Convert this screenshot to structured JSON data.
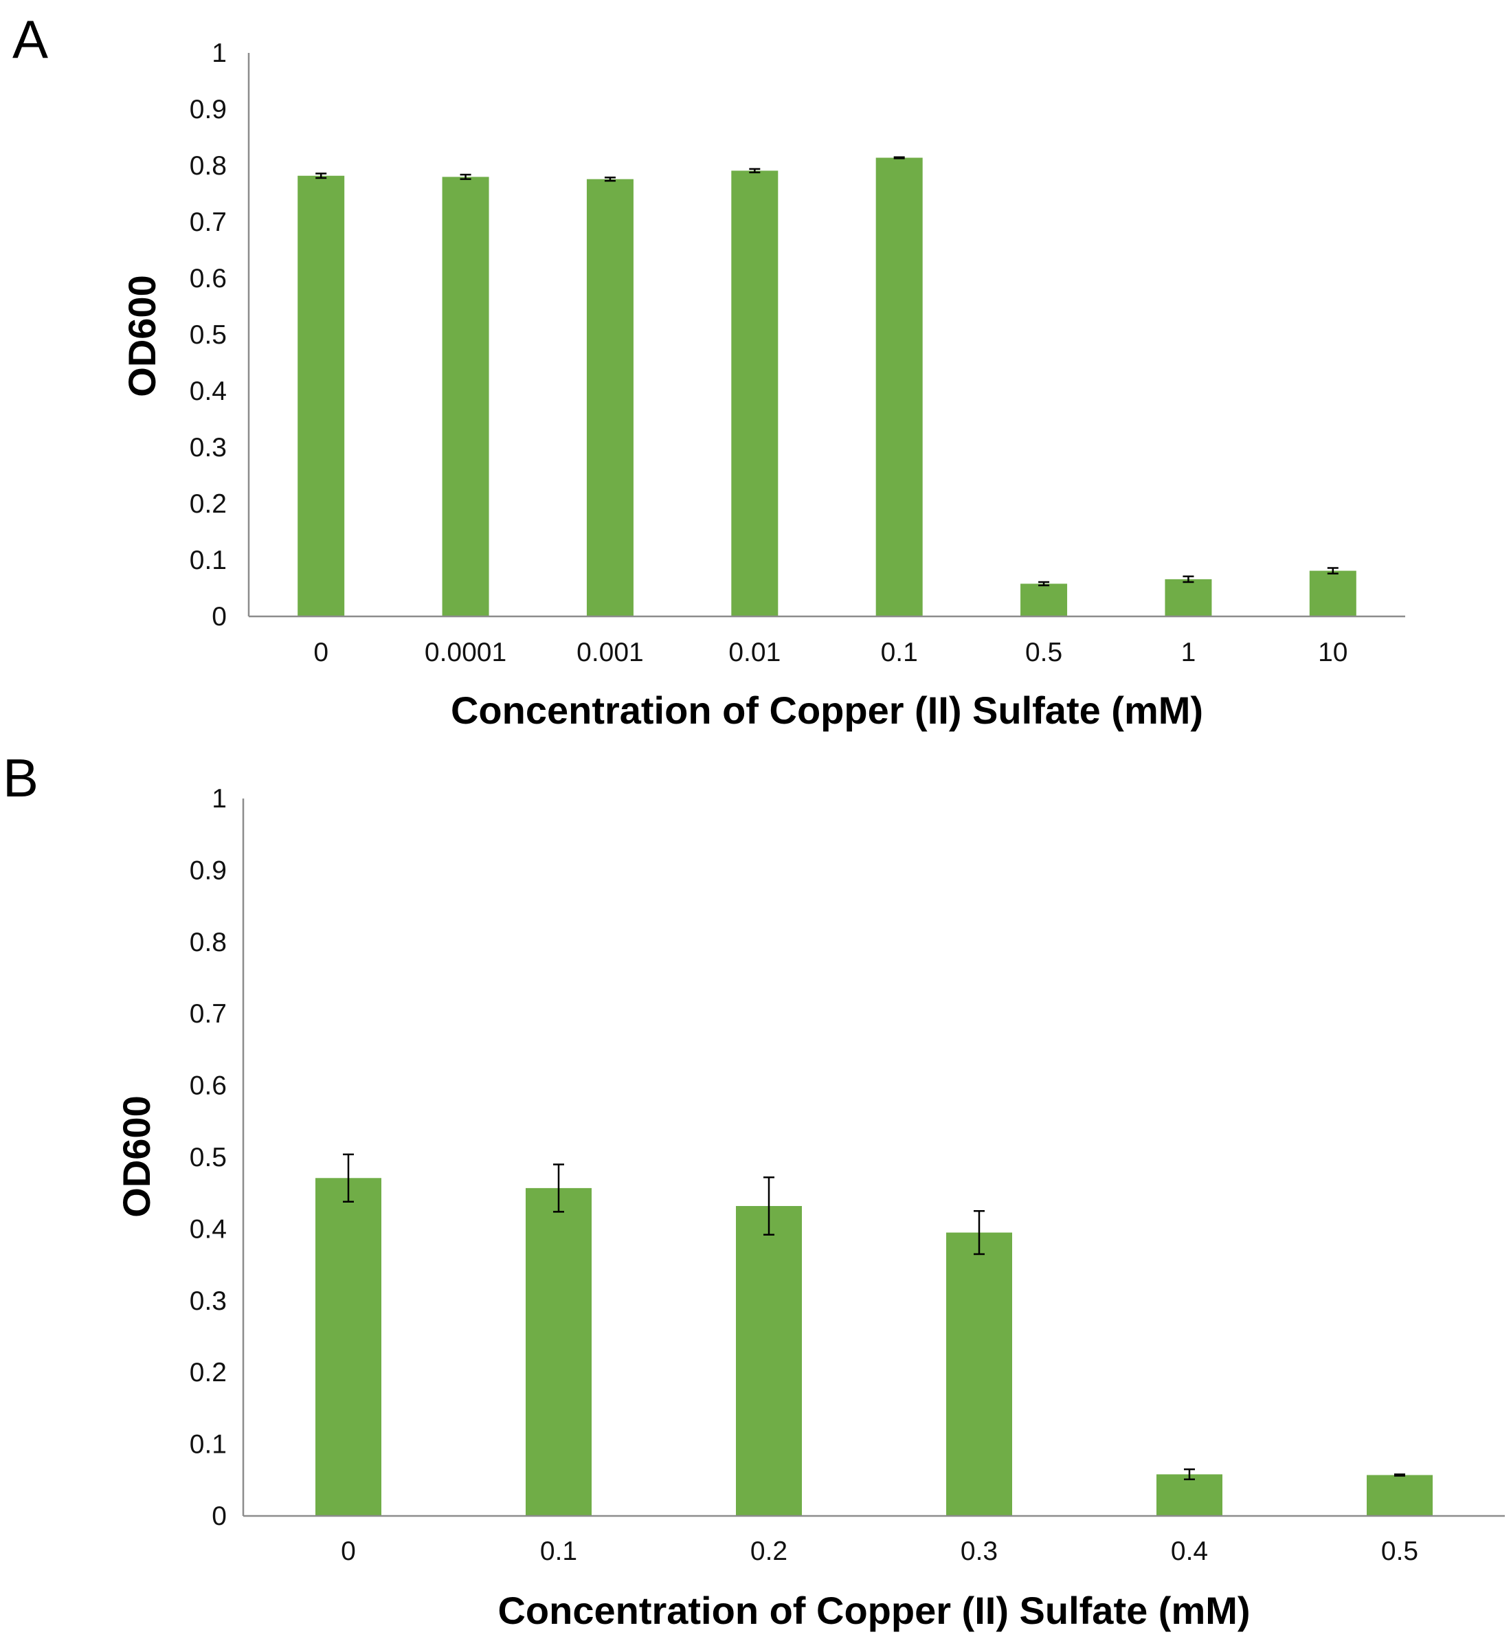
{
  "chart_data": [
    {
      "panel_label": "A",
      "type": "bar",
      "xlabel": "Concentration of Copper (II) Sulfate (mM)",
      "ylabel": "OD600",
      "ylim": [
        0,
        1
      ],
      "yticks": [
        "0",
        "0.1",
        "0.2",
        "0.3",
        "0.4",
        "0.5",
        "0.6",
        "0.7",
        "0.8",
        "0.9",
        "1"
      ],
      "categories": [
        "0",
        "0.0001",
        "0.001",
        "0.01",
        "0.1",
        "0.5",
        "1",
        "10"
      ],
      "values": [
        0.782,
        0.78,
        0.776,
        0.791,
        0.814,
        0.058,
        0.066,
        0.081
      ],
      "errors": [
        0.004,
        0.004,
        0.003,
        0.003,
        0.001,
        0.003,
        0.005,
        0.005
      ],
      "color": "#70ad47",
      "grid": false,
      "legend": "none"
    },
    {
      "panel_label": "B",
      "type": "bar",
      "xlabel": "Concentration of Copper (II) Sulfate (mM)",
      "ylabel": "OD600",
      "ylim": [
        0,
        1
      ],
      "yticks": [
        "0",
        "0.1",
        "0.2",
        "0.3",
        "0.4",
        "0.5",
        "0.6",
        "0.7",
        "0.8",
        "0.9",
        "1"
      ],
      "categories": [
        "0",
        "0.1",
        "0.2",
        "0.3",
        "0.4",
        "0.5"
      ],
      "values": [
        0.471,
        0.457,
        0.432,
        0.395,
        0.058,
        0.057
      ],
      "errors": [
        0.033,
        0.033,
        0.04,
        0.03,
        0.007,
        0.001
      ],
      "color": "#70ad47",
      "grid": false,
      "legend": "none"
    }
  ]
}
